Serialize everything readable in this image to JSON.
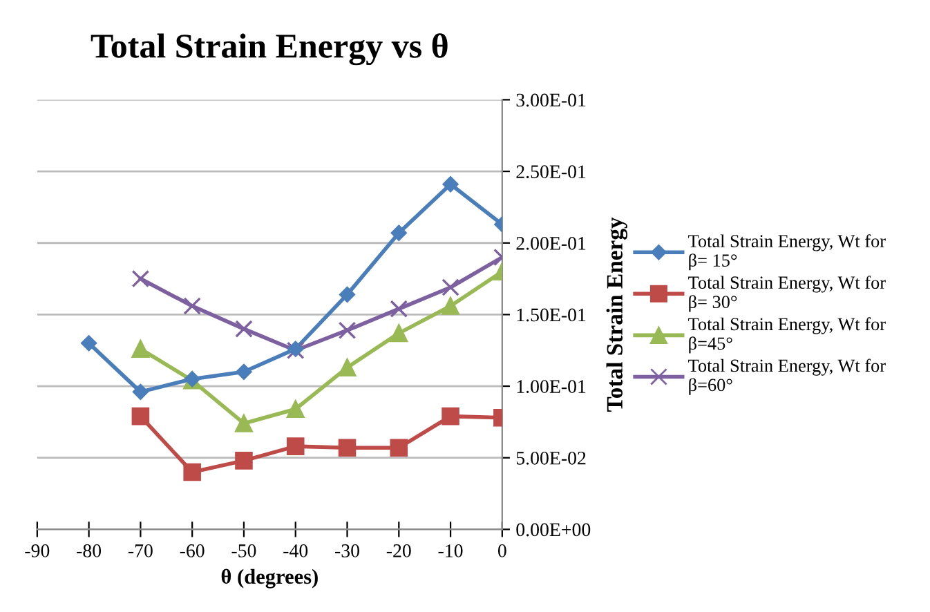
{
  "chart_data": {
    "type": "line",
    "title": "Total Strain Energy vs θ",
    "xlabel": "θ (degrees)",
    "ylabel": "Total Strain Energy",
    "xlim": [
      -90,
      0
    ],
    "xticks": [
      -90,
      -80,
      -70,
      -60,
      -50,
      -40,
      -30,
      -20,
      -10,
      0
    ],
    "ylim": [
      0,
      0.3
    ],
    "yticks": [
      {
        "value": 0,
        "label": "0.00E+00"
      },
      {
        "value": 0.05,
        "label": "5.00E-02"
      },
      {
        "value": 0.1,
        "label": "1.00E-01"
      },
      {
        "value": 0.15,
        "label": "1.50E-01"
      },
      {
        "value": 0.2,
        "label": "2.00E-01"
      },
      {
        "value": 0.25,
        "label": "2.50E-01"
      },
      {
        "value": 0.3,
        "label": "3.00E-01"
      }
    ],
    "grid": "y",
    "legend": "right",
    "line_style": "solid",
    "series": [
      {
        "name": "Total Strain Energy, Wt for\nβ= 15°",
        "color": "#4a7ebb",
        "marker": "diamond",
        "x": [
          -80,
          -70,
          -60,
          -50,
          -40,
          -30,
          -20,
          -10,
          0
        ],
        "values": [
          0.13,
          0.096,
          0.105,
          0.11,
          0.126,
          0.164,
          0.207,
          0.241,
          0.213
        ]
      },
      {
        "name": "Total Strain Energy, Wt for\nβ= 30°",
        "color": "#be4b48",
        "marker": "square",
        "x": [
          -70,
          -60,
          -50,
          -40,
          -30,
          -20,
          -10,
          0
        ],
        "values": [
          0.079,
          0.04,
          0.048,
          0.058,
          0.057,
          0.057,
          0.079,
          0.078
        ]
      },
      {
        "name": "Total Strain Energy, Wt for\nβ=45°",
        "color": "#98b954",
        "marker": "triangle",
        "x": [
          -70,
          -60,
          -50,
          -40,
          -30,
          -20,
          -10,
          0
        ],
        "values": [
          0.126,
          0.104,
          0.074,
          0.084,
          0.113,
          0.137,
          0.156,
          0.18
        ]
      },
      {
        "name": "Total Strain Energy, Wt for\nβ=60°",
        "color": "#7d60a0",
        "marker": "cross",
        "x": [
          -70,
          -60,
          -50,
          -40,
          -30,
          -20,
          -10,
          0
        ],
        "values": [
          0.175,
          0.156,
          0.14,
          0.125,
          0.139,
          0.154,
          0.169,
          0.19
        ]
      }
    ]
  }
}
